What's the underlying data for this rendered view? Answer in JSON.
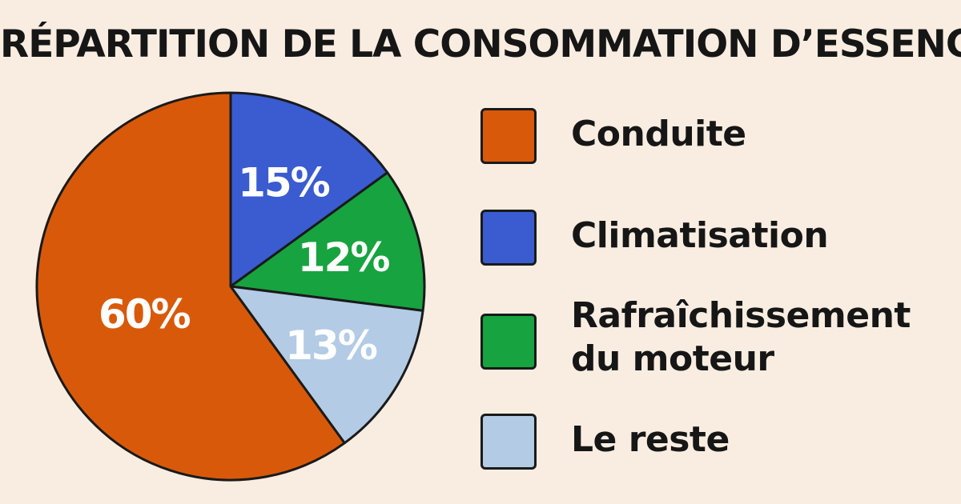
{
  "chart_data": {
    "type": "pie",
    "title": "RÉPARTITION DE LA CONSOMMATION D’ESSENCE",
    "slices": [
      {
        "label": "Conduite",
        "value": 60,
        "value_label": "60%",
        "color": "#d9590a",
        "label_color": "#ffffff"
      },
      {
        "label": "Climatisation",
        "value": 15,
        "value_label": "15%",
        "color": "#3a5cd0",
        "label_color": "#ffffff"
      },
      {
        "label": "Rafraîchissement du moteur",
        "label_lines": [
          "Rafraîchissement",
          "du moteur"
        ],
        "value": 12,
        "value_label": "12%",
        "color": "#17a33f",
        "label_color": "#ffffff"
      },
      {
        "label": "Le reste",
        "value": 13,
        "value_label": "13%",
        "color": "#b3cbe5",
        "label_color": "#ffffff"
      }
    ],
    "legend_position": "right",
    "start_angle_deg": 0,
    "direction": "clockwise"
  }
}
